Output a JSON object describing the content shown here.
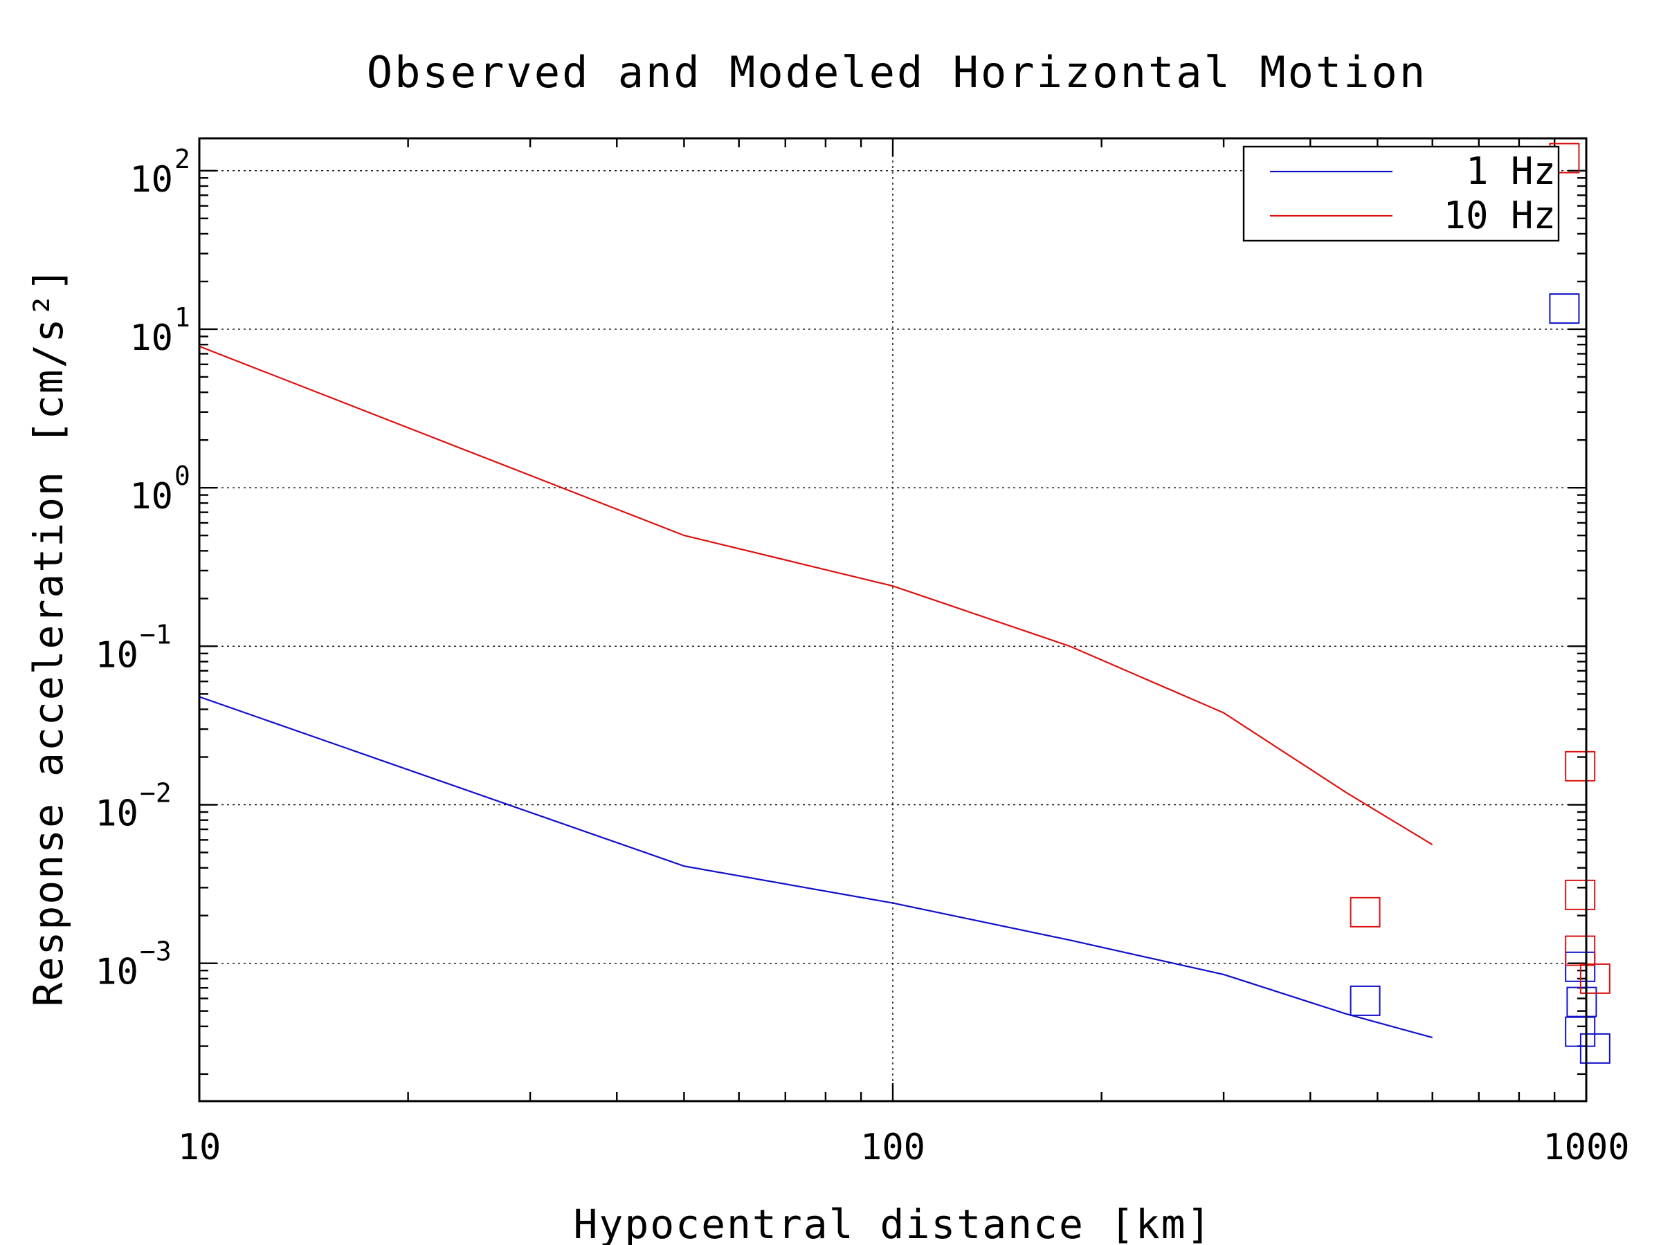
{
  "chart_data": {
    "type": "line",
    "title": "Observed and Modeled Horizontal Motion",
    "xlabel": "Hypocentral distance [km]",
    "ylabel": "Response acceleration [cm/s²]",
    "x_scale": "log",
    "y_scale": "log",
    "xlim": [
      10,
      1000
    ],
    "ylim": [
      0.000135,
      160
    ],
    "x_ticks": [
      10,
      100,
      1000
    ],
    "x_tick_labels": [
      "10",
      "100",
      "1000"
    ],
    "y_ticks": [
      {
        "value": 0.001,
        "base": "10",
        "exp": "−3"
      },
      {
        "value": 0.01,
        "base": "10",
        "exp": "−2"
      },
      {
        "value": 0.1,
        "base": "10",
        "exp": "−1"
      },
      {
        "value": 1,
        "base": "10",
        "exp": "0"
      },
      {
        "value": 10,
        "base": "10",
        "exp": "1"
      },
      {
        "value": 100,
        "base": "10",
        "exp": "2"
      }
    ],
    "grid": true,
    "legend_position": "top-right",
    "series": [
      {
        "name": "1 Hz",
        "color": "#1010cc",
        "kind": "line",
        "x": [
          10,
          50,
          100,
          180,
          300,
          450,
          600
        ],
        "y": [
          0.048,
          0.0041,
          0.0024,
          0.0014,
          0.00085,
          0.00048,
          0.00034
        ]
      },
      {
        "name": "10 Hz",
        "color": "#dd1111",
        "kind": "line",
        "x": [
          10,
          50,
          100,
          180,
          300,
          450,
          600
        ],
        "y": [
          7.8,
          0.5,
          0.24,
          0.1,
          0.038,
          0.012,
          0.0056
        ]
      }
    ],
    "observed": [
      {
        "color": "#1010cc",
        "x": [
          480,
          930,
          980,
          985,
          980,
          1030
        ],
        "y": [
          0.00058,
          13.5,
          0.00095,
          0.00057,
          0.00037,
          0.00029
        ]
      },
      {
        "color": "#dd1111",
        "x": [
          480,
          930,
          980,
          980,
          980,
          1030
        ],
        "y": [
          0.0021,
          120,
          0.0175,
          0.0027,
          0.0012,
          0.0008
        ]
      }
    ]
  }
}
